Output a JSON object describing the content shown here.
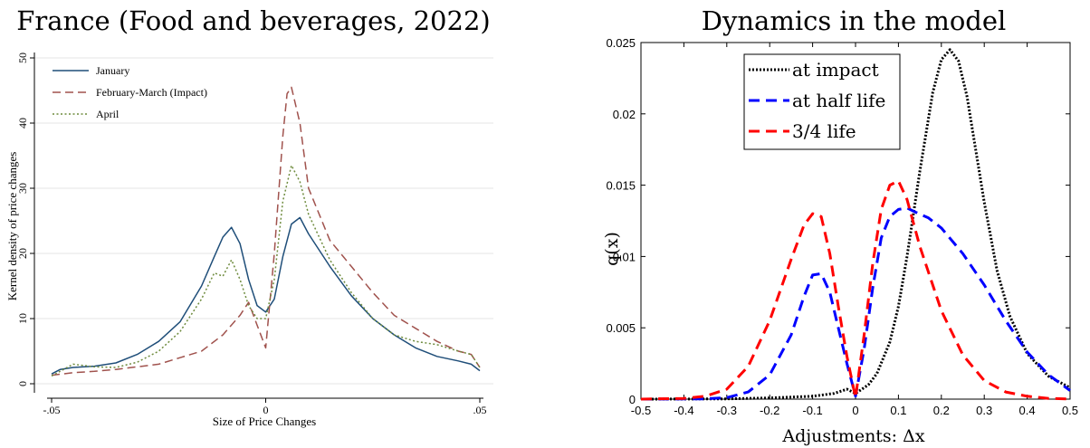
{
  "chart_data": [
    {
      "type": "line",
      "title": "France (Food and beverages, 2022)",
      "xlabel": "Size of Price Changes",
      "ylabel": "Kernel density of price changes",
      "xlim": [
        -0.05,
        0.05
      ],
      "ylim": [
        0,
        50
      ],
      "x_ticks": [
        -0.05,
        0,
        0.05
      ],
      "x_tick_labels": [
        "-.05",
        "0",
        ".05"
      ],
      "y_ticks": [
        0,
        10,
        20,
        30,
        40,
        50
      ],
      "y_tick_labels": [
        "0",
        "10",
        "20",
        "30",
        "40",
        "50"
      ],
      "grid": true,
      "legend_position": "top-left",
      "series": [
        {
          "name": "January",
          "color": "#1f4e79",
          "style": "solid",
          "x": [
            -0.05,
            -0.048,
            -0.045,
            -0.04,
            -0.035,
            -0.03,
            -0.025,
            -0.02,
            -0.015,
            -0.012,
            -0.01,
            -0.008,
            -0.006,
            -0.004,
            -0.002,
            0,
            0.002,
            0.004,
            0.006,
            0.008,
            0.01,
            0.015,
            0.02,
            0.025,
            0.03,
            0.035,
            0.04,
            0.045,
            0.048,
            0.05
          ],
          "y": [
            1.5,
            2.2,
            2.5,
            2.7,
            3.2,
            4.5,
            6.5,
            9.5,
            15,
            19.5,
            22.5,
            24,
            21.5,
            16,
            12,
            11,
            13,
            19.5,
            24.5,
            25.5,
            23,
            18,
            13.5,
            10,
            7.5,
            5.5,
            4.2,
            3.5,
            3.0,
            2.0
          ]
        },
        {
          "name": "February-March (Impact)",
          "color": "#a0524d",
          "style": "dashed",
          "x": [
            -0.05,
            -0.045,
            -0.04,
            -0.035,
            -0.03,
            -0.025,
            -0.02,
            -0.015,
            -0.01,
            -0.006,
            -0.004,
            -0.002,
            0,
            0.002,
            0.004,
            0.005,
            0.006,
            0.008,
            0.01,
            0.015,
            0.02,
            0.025,
            0.03,
            0.035,
            0.04,
            0.045,
            0.048,
            0.05
          ],
          "y": [
            1.3,
            1.7,
            1.9,
            2.2,
            2.6,
            3.0,
            4.0,
            5.0,
            7.5,
            10.5,
            12.5,
            9,
            5.5,
            20,
            38,
            44.5,
            45.5,
            40,
            30,
            22,
            18,
            14,
            10.5,
            8.5,
            6.5,
            5.0,
            4.5,
            2.5
          ]
        },
        {
          "name": "April",
          "color": "#6e8b3d",
          "style": "dotted",
          "x": [
            -0.05,
            -0.045,
            -0.04,
            -0.035,
            -0.03,
            -0.025,
            -0.02,
            -0.015,
            -0.012,
            -0.01,
            -0.008,
            -0.006,
            -0.004,
            -0.002,
            0,
            0.002,
            0.004,
            0.006,
            0.008,
            0.01,
            0.015,
            0.02,
            0.025,
            0.03,
            0.035,
            0.04,
            0.045,
            0.048,
            0.05
          ],
          "y": [
            1.2,
            3.0,
            2.6,
            2.5,
            3.3,
            5.0,
            8.0,
            13,
            17,
            16.5,
            19,
            16,
            12,
            10,
            10,
            16,
            28,
            33.5,
            31,
            26,
            19,
            14,
            10,
            7.5,
            6.5,
            6.0,
            5.0,
            4.5,
            2.5
          ]
        }
      ]
    },
    {
      "type": "line",
      "title": "Dynamics in the model",
      "xlabel": "Adjustments: Δx",
      "ylabel": "q(x)",
      "xlim": [
        -0.5,
        0.5
      ],
      "ylim": [
        0,
        0.025
      ],
      "x_ticks": [
        -0.5,
        -0.4,
        -0.3,
        -0.2,
        -0.1,
        0,
        0.1,
        0.2,
        0.3,
        0.4,
        0.5
      ],
      "x_tick_labels": [
        "-0.5",
        "-0.4",
        "-0.3",
        "-0.2",
        "-0.1",
        "0",
        "0.1",
        "0.2",
        "0.3",
        "0.4",
        "0.5"
      ],
      "y_ticks": [
        0,
        0.005,
        0.01,
        0.015,
        0.02,
        0.025
      ],
      "y_tick_labels": [
        "0",
        "0.005",
        "0.01",
        "0.015",
        "0.02",
        "0.025"
      ],
      "grid": false,
      "legend_position": "top-left",
      "series": [
        {
          "name": "at impact",
          "color": "#000000",
          "style": "dotted",
          "x": [
            -0.5,
            -0.3,
            -0.2,
            -0.1,
            -0.05,
            -0.02,
            0,
            0.03,
            0.05,
            0.08,
            0.1,
            0.12,
            0.15,
            0.18,
            0.2,
            0.22,
            0.24,
            0.26,
            0.28,
            0.3,
            0.33,
            0.36,
            0.4,
            0.45,
            0.5
          ],
          "y": [
            0,
            2e-05,
            8e-05,
            0.0002,
            0.0004,
            0.0007,
            0.0004,
            0.001,
            0.0018,
            0.004,
            0.0065,
            0.01,
            0.016,
            0.0215,
            0.0238,
            0.0245,
            0.0237,
            0.0212,
            0.0175,
            0.0138,
            0.009,
            0.0058,
            0.0032,
            0.0016,
            0.0008
          ]
        },
        {
          "name": "at half life",
          "color": "#0000ff",
          "style": "dashed",
          "x": [
            -0.5,
            -0.35,
            -0.3,
            -0.25,
            -0.2,
            -0.15,
            -0.12,
            -0.1,
            -0.08,
            -0.06,
            -0.04,
            -0.02,
            0,
            0.02,
            0.04,
            0.06,
            0.08,
            0.1,
            0.12,
            0.14,
            0.17,
            0.2,
            0.25,
            0.3,
            0.35,
            0.4,
            0.45,
            0.5
          ],
          "y": [
            0,
            2e-05,
            0.0001,
            0.0005,
            0.0017,
            0.0045,
            0.0072,
            0.0087,
            0.0088,
            0.0075,
            0.005,
            0.0025,
            0.0002,
            0.0035,
            0.0078,
            0.0113,
            0.0128,
            0.0133,
            0.0134,
            0.0131,
            0.0127,
            0.012,
            0.0102,
            0.008,
            0.0055,
            0.0033,
            0.0017,
            0.0006
          ]
        },
        {
          "name": "3/4 life",
          "color": "#ff0000",
          "style": "dashed",
          "x": [
            -0.5,
            -0.4,
            -0.35,
            -0.3,
            -0.25,
            -0.2,
            -0.15,
            -0.12,
            -0.1,
            -0.08,
            -0.06,
            -0.04,
            -0.02,
            0,
            0.02,
            0.04,
            0.06,
            0.08,
            0.1,
            0.12,
            0.15,
            0.2,
            0.25,
            0.3,
            0.35,
            0.4,
            0.45,
            0.5
          ],
          "y": [
            0,
            5e-05,
            0.0002,
            0.0007,
            0.0023,
            0.0055,
            0.0098,
            0.0122,
            0.013,
            0.0128,
            0.0102,
            0.0065,
            0.003,
            0.0001,
            0.0045,
            0.0095,
            0.0133,
            0.015,
            0.0153,
            0.014,
            0.0107,
            0.0062,
            0.0031,
            0.0013,
            0.0005,
            0.0002,
            5e-05,
            1e-05
          ]
        }
      ]
    }
  ]
}
